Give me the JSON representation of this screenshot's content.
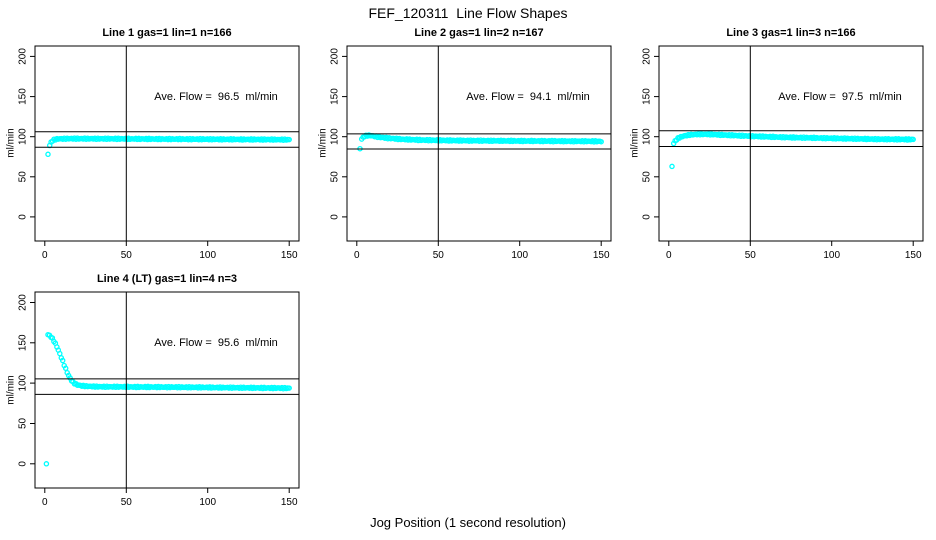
{
  "chart_data": {
    "type": "scatter",
    "title": "FEF_120311  Line Flow Shapes",
    "xlabel": "Jog Position (1 second resolution)",
    "point_color": "#00FFFF",
    "axis_color": "#000000",
    "xlim": [
      -6,
      156
    ],
    "ylim": [
      -30,
      213
    ],
    "xticks": [
      0,
      50,
      100,
      150
    ],
    "yticks": [
      0,
      50,
      100,
      150,
      200
    ],
    "vline_x": 50,
    "grid": false,
    "legend": "none",
    "panels": [
      {
        "title": "Line 1 gas=1 lin=1 n=166",
        "ylab": "ml/min",
        "annotation": "Ave. Flow =  96.5  ml/min",
        "ave_flow": 96.5,
        "n": 166,
        "n_points": 166,
        "ref_lines": [
          106.2,
          86.9
        ],
        "outliers": [
          [
            2,
            78
          ]
        ],
        "profile": [
          [
            3,
            89
          ],
          [
            4,
            93.5
          ],
          [
            5,
            95.5
          ],
          [
            6,
            96.5
          ],
          [
            8,
            97.3
          ],
          [
            15,
            97.6
          ],
          [
            30,
            97.5
          ],
          [
            60,
            97.2
          ],
          [
            100,
            96.8
          ],
          [
            150,
            96.3
          ]
        ]
      },
      {
        "title": "Line 2 gas=1 lin=2 n=167",
        "ylab": "ml/min",
        "annotation": "Ave. Flow =  94.1  ml/min",
        "ave_flow": 94.1,
        "n": 167,
        "n_points": 167,
        "ref_lines": [
          103.5,
          84.7
        ],
        "outliers": [
          [
            2,
            85
          ]
        ],
        "profile": [
          [
            3,
            97
          ],
          [
            4,
            99.5
          ],
          [
            5,
            100.8
          ],
          [
            6,
            101.4
          ],
          [
            8,
            101.5
          ],
          [
            10,
            100.8
          ],
          [
            14,
            99.4
          ],
          [
            20,
            98
          ],
          [
            28,
            96.8
          ],
          [
            40,
            95.8
          ],
          [
            60,
            95.2
          ],
          [
            100,
            94.7
          ],
          [
            150,
            94.2
          ]
        ]
      },
      {
        "title": "Line 3 gas=1 lin=3 n=166",
        "ylab": "ml/min",
        "annotation": "Ave. Flow =  97.5  ml/min",
        "ave_flow": 97.5,
        "n": 166,
        "n_points": 166,
        "ref_lines": [
          107.3,
          87.8
        ],
        "outliers": [
          [
            2,
            63
          ]
        ],
        "profile": [
          [
            3,
            91.5
          ],
          [
            4,
            95
          ],
          [
            6,
            98.5
          ],
          [
            9,
            100.8
          ],
          [
            13,
            102.3
          ],
          [
            18,
            103
          ],
          [
            25,
            103
          ],
          [
            35,
            102
          ],
          [
            50,
            100.7
          ],
          [
            70,
            99.3
          ],
          [
            100,
            98
          ],
          [
            125,
            97
          ],
          [
            150,
            96.5
          ]
        ]
      },
      {
        "title": "Line 4 (LT) gas=1 lin=4 n=3",
        "ylab": "ml/min",
        "annotation": "Ave. Flow =  95.6  ml/min",
        "ave_flow": 95.6,
        "n": 3,
        "n_points": 166,
        "ref_lines": [
          105.2,
          86.0
        ],
        "outliers": [
          [
            1,
            0
          ]
        ],
        "profile": [
          [
            2,
            160
          ],
          [
            3,
            159
          ],
          [
            4,
            157
          ],
          [
            5,
            154.5
          ],
          [
            6,
            151
          ],
          [
            7,
            147
          ],
          [
            8,
            142.5
          ],
          [
            9,
            137.5
          ],
          [
            10,
            132.5
          ],
          [
            11,
            127.5
          ],
          [
            12,
            122
          ],
          [
            13,
            117
          ],
          [
            14,
            112
          ],
          [
            15,
            108
          ],
          [
            16,
            104.5
          ],
          [
            17,
            101.8
          ],
          [
            18,
            100
          ],
          [
            20,
            97.8
          ],
          [
            23,
            96.6
          ],
          [
            27,
            96
          ],
          [
            35,
            95.6
          ],
          [
            50,
            95.4
          ],
          [
            80,
            95
          ],
          [
            120,
            94.3
          ],
          [
            150,
            93.8
          ]
        ]
      }
    ]
  }
}
